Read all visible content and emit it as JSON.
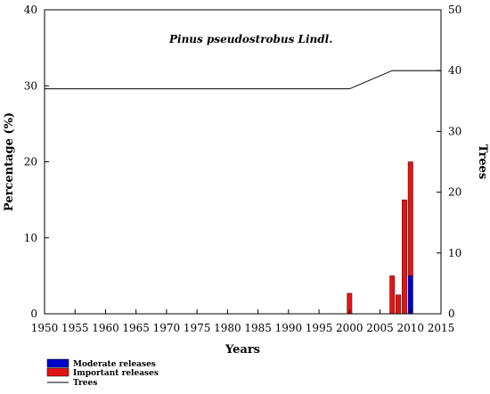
{
  "chart_data": {
    "type": "bar",
    "title": "Pinus pseudostrobus Lindl.",
    "xlabel": "Years",
    "ylabel": "Percentage (%)",
    "y2label": "Trees",
    "xlim": [
      1950,
      2015
    ],
    "ylim": [
      0,
      40
    ],
    "y2lim": [
      0,
      50
    ],
    "xticks": [
      1950,
      1955,
      1960,
      1965,
      1970,
      1975,
      1980,
      1985,
      1990,
      1995,
      2000,
      2005,
      2010,
      2015
    ],
    "yticks": [
      0,
      10,
      20,
      30,
      40
    ],
    "y2ticks": [
      0,
      10,
      20,
      30,
      40,
      50
    ],
    "bar_width_years": 0.8,
    "stacked": true,
    "series": [
      {
        "name": "Moderate releases",
        "color": "#0000cc",
        "axis": "left",
        "points": [
          {
            "x": 2010,
            "y": 5
          }
        ]
      },
      {
        "name": "Important releases",
        "color": "#e31414",
        "axis": "left",
        "points": [
          {
            "x": 2000,
            "y": 2.7
          },
          {
            "x": 2007,
            "y": 5
          },
          {
            "x": 2008,
            "y": 2.5
          },
          {
            "x": 2009,
            "y": 15
          },
          {
            "x": 2010,
            "y": 15
          }
        ]
      },
      {
        "name": "Trees",
        "color": "#000000",
        "axis": "right",
        "kind": "line",
        "points": [
          {
            "x": 1950,
            "y": 37
          },
          {
            "x": 2000,
            "y": 37
          },
          {
            "x": 2007,
            "y": 40
          },
          {
            "x": 2015,
            "y": 40
          }
        ]
      }
    ],
    "legend": {
      "placement": "bottom-left",
      "entries": [
        {
          "label": "Moderate releases",
          "marker": "box",
          "color": "#0000cc"
        },
        {
          "label": "Important releases",
          "marker": "box",
          "color": "#e31414"
        },
        {
          "label": "Trees",
          "marker": "line",
          "color": "#000000"
        }
      ]
    },
    "grid": false
  }
}
